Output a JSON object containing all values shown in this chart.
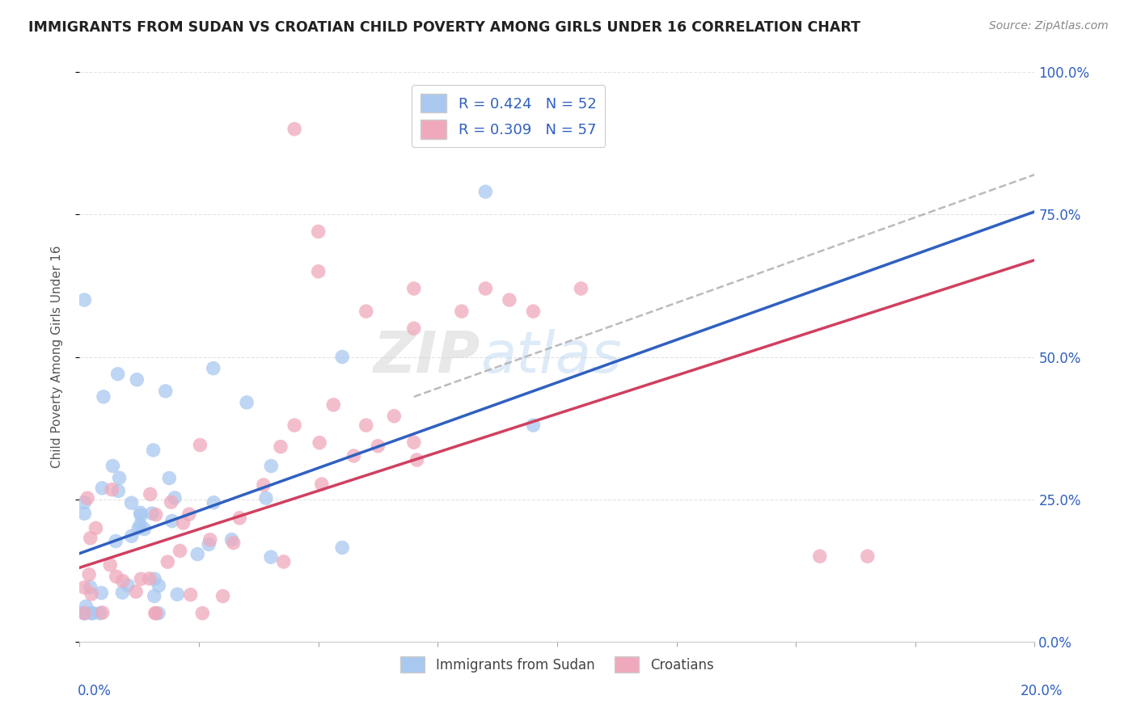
{
  "title": "IMMIGRANTS FROM SUDAN VS CROATIAN CHILD POVERTY AMONG GIRLS UNDER 16 CORRELATION CHART",
  "source": "Source: ZipAtlas.com",
  "ylabel": "Child Poverty Among Girls Under 16",
  "legend_entries": [
    "Immigrants from Sudan",
    "Croatians"
  ],
  "r_blue": 0.424,
  "n_blue": 52,
  "r_pink": 0.309,
  "n_pink": 57,
  "blue_color": "#a8c8f0",
  "pink_color": "#f0a8bc",
  "blue_line_color": "#3060c0",
  "pink_line_color": "#d04060",
  "dashed_line_color": "#b0b0b0",
  "title_color": "#222222",
  "legend_text_color": "#3060c0",
  "background_color": "#ffffff",
  "grid_color": "#e0e0e0",
  "xmin": 0.0,
  "xmax": 0.2,
  "ymin": 0.0,
  "ymax": 1.0,
  "blue_intercept": 0.155,
  "blue_slope": 3.0,
  "pink_intercept": 0.13,
  "pink_slope": 2.7,
  "dash_intercept": 0.22,
  "dash_slope": 3.0,
  "right_yticks": [
    0.0,
    0.25,
    0.5,
    0.75,
    1.0
  ],
  "right_yticklabels": [
    "0.0%",
    "25.0%",
    "50.0%",
    "75.0%",
    "100.0%"
  ]
}
